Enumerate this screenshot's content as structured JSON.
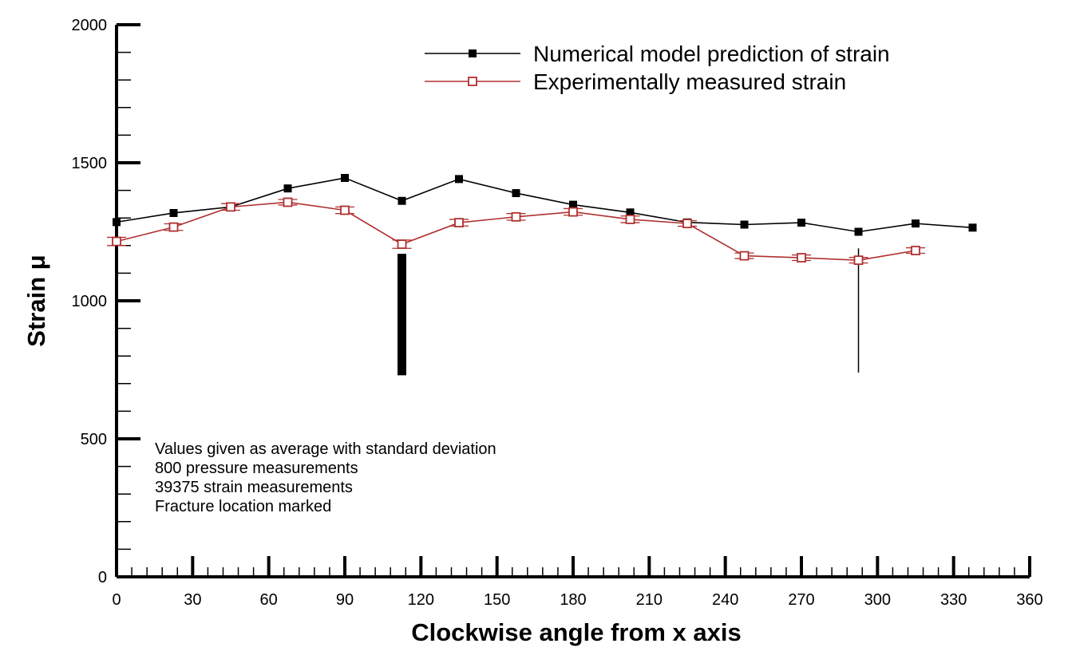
{
  "chart_data": {
    "type": "line",
    "xlabel": "Clockwise angle from x axis",
    "ylabel": "Strain μ",
    "xlim": [
      0,
      360
    ],
    "ylim": [
      0,
      2000
    ],
    "x_ticks": [
      0,
      30,
      60,
      90,
      120,
      150,
      180,
      210,
      240,
      270,
      300,
      330,
      360
    ],
    "y_ticks": [
      0,
      500,
      1000,
      1500,
      2000
    ],
    "x_tick_labels": [
      "0",
      "30",
      "60",
      "90",
      "120",
      "150",
      "180",
      "210",
      "240",
      "270",
      "300",
      "330",
      "360"
    ],
    "y_tick_labels": [
      "0",
      "500",
      "1000",
      "1500",
      "2000"
    ],
    "grid": false,
    "legend_position": "top-right",
    "series": [
      {
        "name": "Numerical model prediction of strain",
        "color": "#000000",
        "marker": "filled-square",
        "x": [
          0,
          22.5,
          45,
          67.5,
          90,
          112.5,
          135,
          157.5,
          180,
          202.5,
          225,
          247.5,
          270,
          292.5,
          315,
          337.5
        ],
        "y": [
          1285,
          1318,
          1340,
          1407,
          1445,
          1362,
          1441,
          1390,
          1348,
          1320,
          1284,
          1276,
          1283,
          1250,
          1280,
          1265
        ]
      },
      {
        "name": "Experimentally measured strain",
        "color": "#b03030",
        "marker": "open-square",
        "x": [
          0,
          22.5,
          45,
          67.5,
          90,
          112.5,
          135,
          157.5,
          180,
          202.5,
          225,
          247.5,
          270,
          292.5,
          315
        ],
        "y": [
          1215,
          1267,
          1340,
          1357,
          1328,
          1205,
          1283,
          1304,
          1322,
          1295,
          1280,
          1163,
          1156,
          1147,
          1182
        ],
        "error": [
          15,
          12,
          12,
          10,
          12,
          15,
          12,
          12,
          12,
          12,
          10,
          10,
          10,
          10,
          10
        ]
      }
    ],
    "fracture_markers": [
      {
        "x": 112.5,
        "y_from": 730,
        "y_to": 1170,
        "style": "thick"
      },
      {
        "x": 292.5,
        "y_from": 740,
        "y_to": 1190,
        "style": "thin"
      }
    ],
    "annotations": [
      "Values given as average with standard deviation",
      "800 pressure measurements",
      "39375 strain measurements",
      "Fracture location marked"
    ]
  }
}
